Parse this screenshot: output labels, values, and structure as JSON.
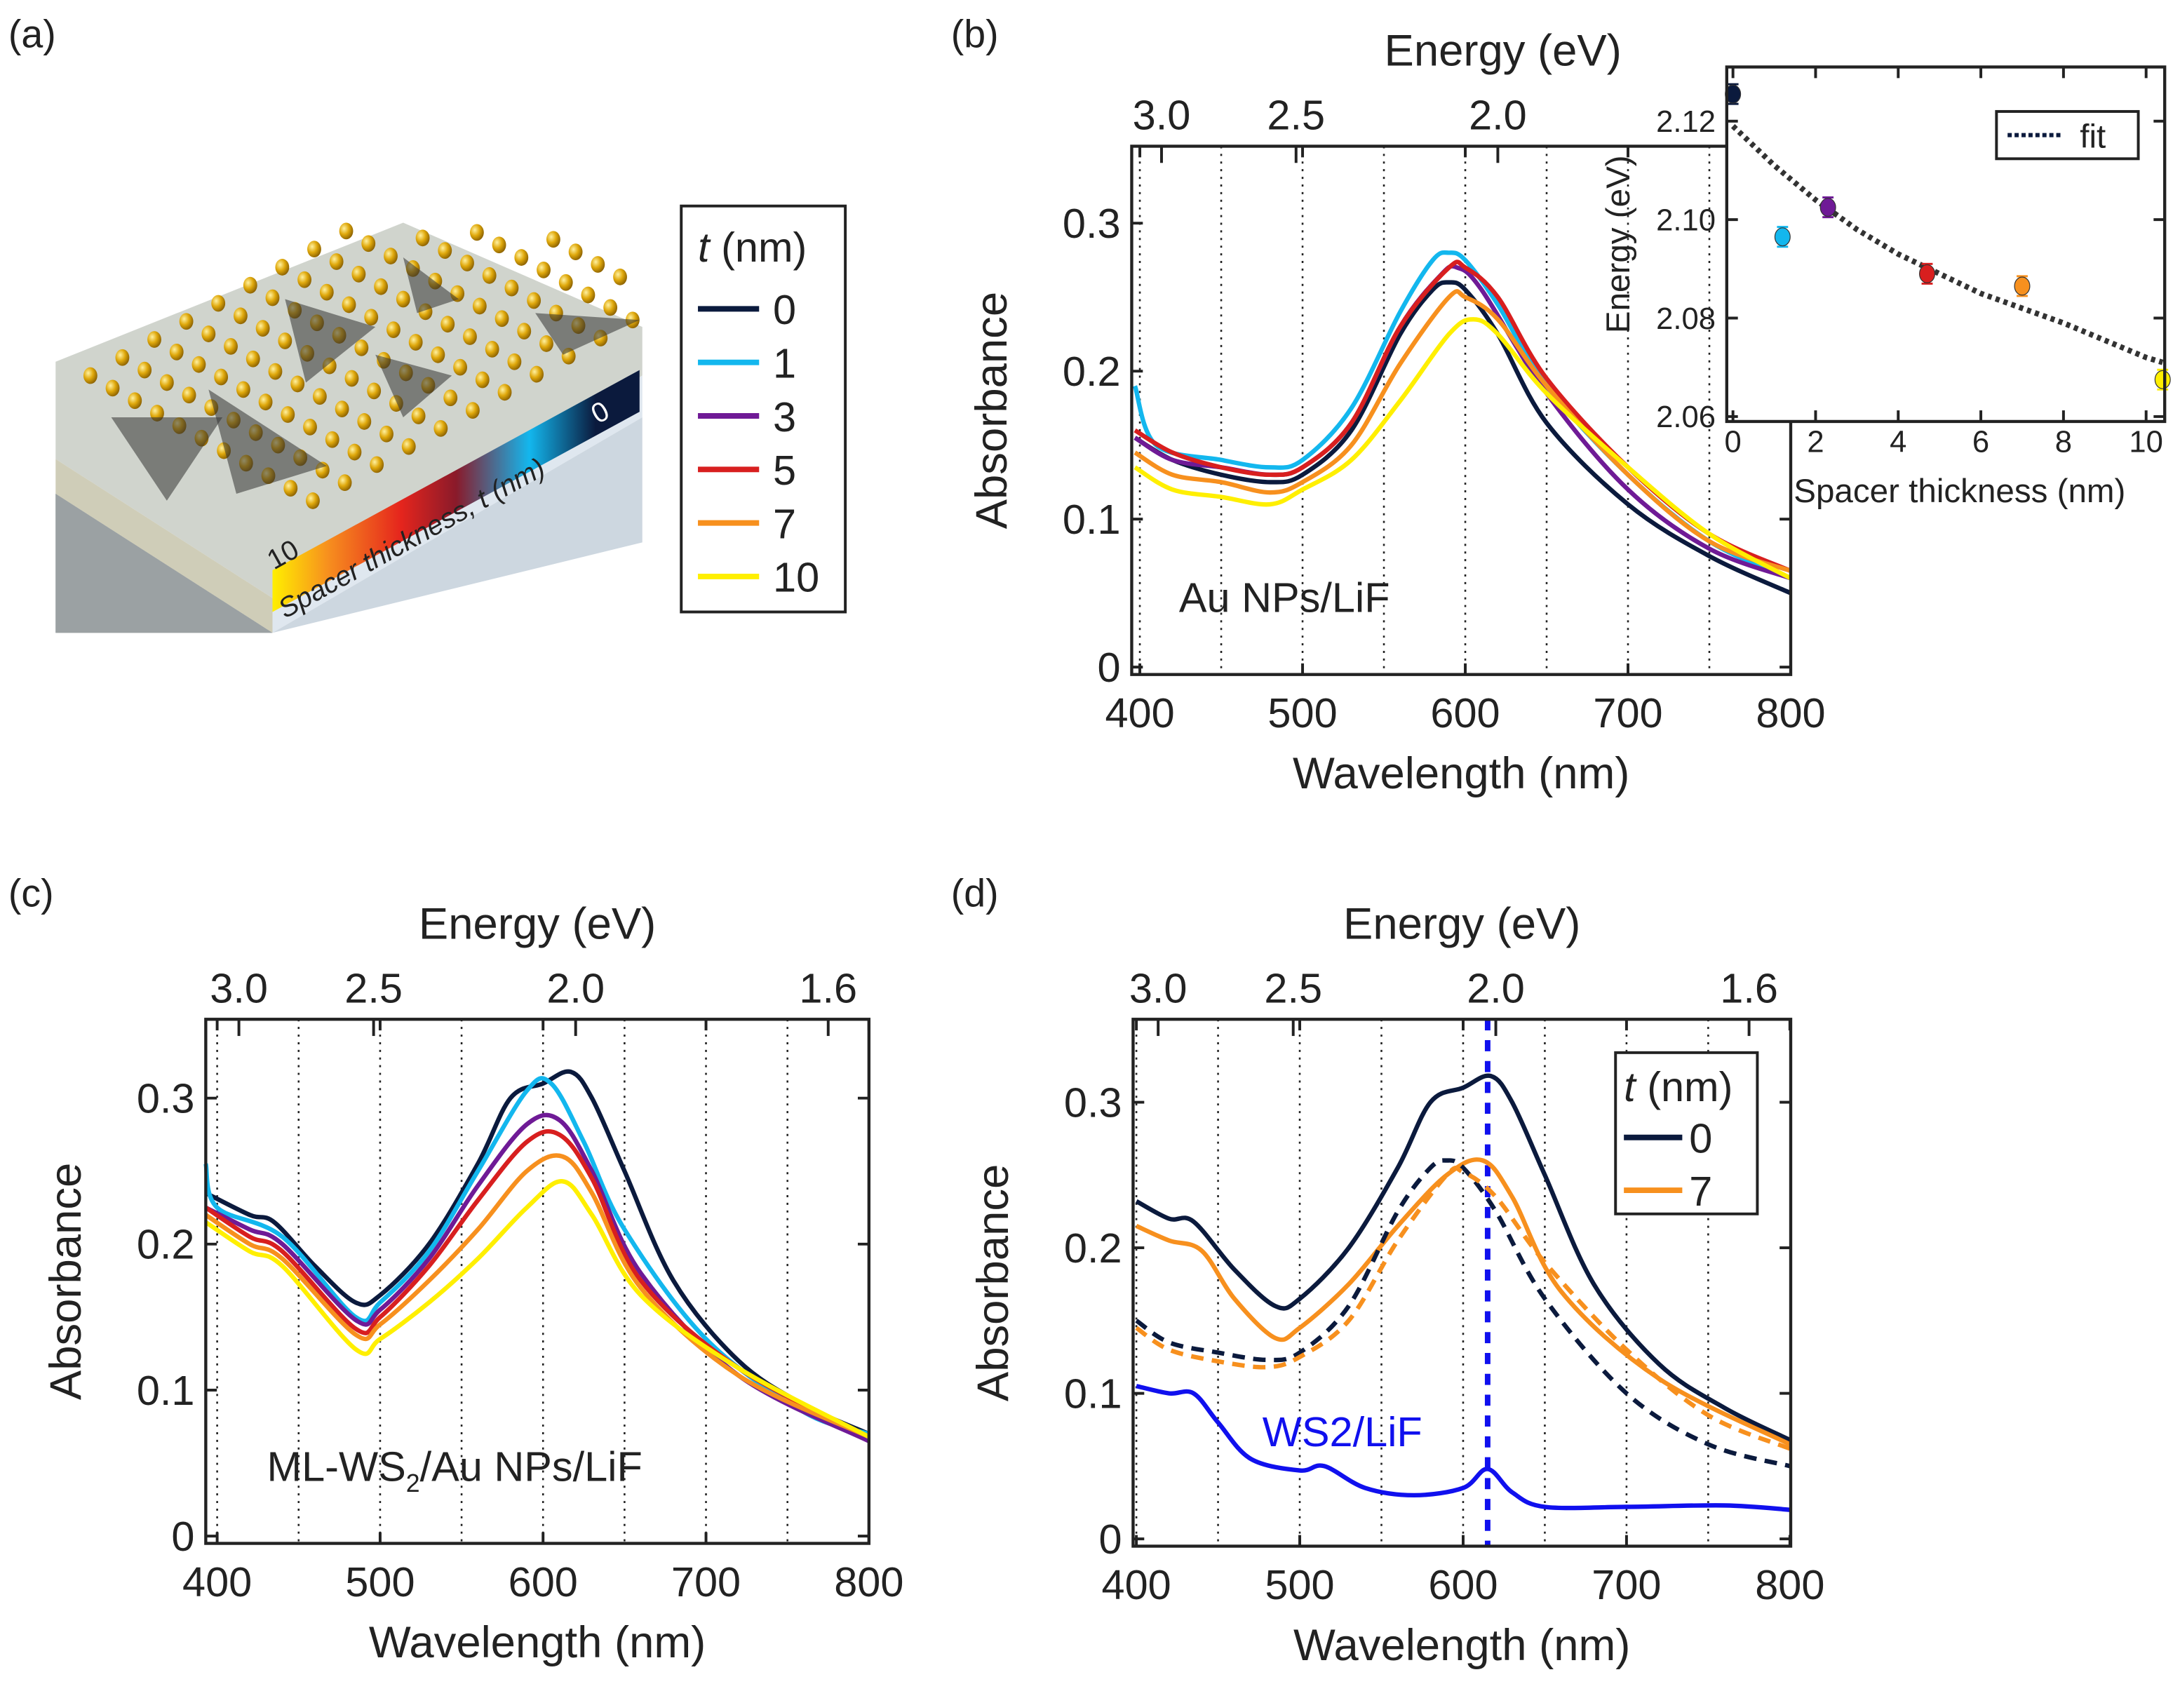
{
  "panel_labels": [
    "(a)",
    "(b)",
    "(c)",
    "(d)"
  ],
  "panel_a": {
    "colorbar_min_label": "10",
    "colorbar_max_label": "0",
    "axis_label": "Spacer thickness, t (nm)",
    "legend_title_italic": "t",
    "legend_title_rest": " (nm)",
    "legend": [
      {
        "label": "0",
        "color": "#0b1a3d"
      },
      {
        "label": "1",
        "color": "#13b7ee"
      },
      {
        "label": "3",
        "color": "#6f1a96"
      },
      {
        "label": "5",
        "color": "#d81f1f"
      },
      {
        "label": "7",
        "color": "#f7901e"
      },
      {
        "label": "10",
        "color": "#ffef00"
      }
    ]
  },
  "chart_data": [
    {
      "id": "b",
      "type": "line",
      "xlabel": "Wavelength (nm)",
      "ylabel": "Absorbance",
      "top_xlabel": "Energy (eV)",
      "annotation": "Au NPs/LiF",
      "xlim": [
        395,
        800
      ],
      "ylim": [
        -0.005,
        0.352
      ],
      "xticks": [
        "400",
        "500",
        "600",
        "700",
        "800"
      ],
      "yticks": [
        "0",
        "0.1",
        "0.2",
        "0.3"
      ],
      "top_ticks": [
        "3.0",
        "2.5",
        "2.0"
      ],
      "grid": "dotted vertical lines every 50 nm",
      "series": [
        {
          "name": "0",
          "color": "#0b1a3d",
          "x": [
            397,
            420,
            450,
            480,
            500,
            530,
            560,
            580,
            590,
            600,
            620,
            650,
            700,
            750,
            800
          ],
          "y": [
            0.155,
            0.14,
            0.13,
            0.125,
            0.13,
            0.16,
            0.225,
            0.255,
            0.26,
            0.255,
            0.225,
            0.165,
            0.11,
            0.075,
            0.05
          ]
        },
        {
          "name": "1",
          "color": "#13b7ee",
          "x": [
            397,
            410,
            450,
            480,
            500,
            530,
            560,
            580,
            590,
            600,
            620,
            650,
            700,
            750,
            800
          ],
          "y": [
            0.19,
            0.15,
            0.14,
            0.135,
            0.14,
            0.175,
            0.24,
            0.275,
            0.28,
            0.275,
            0.245,
            0.19,
            0.13,
            0.085,
            0.06
          ]
        },
        {
          "name": "3",
          "color": "#6f1a96",
          "x": [
            397,
            420,
            450,
            480,
            500,
            530,
            560,
            585,
            595,
            610,
            650,
            700,
            750,
            800
          ],
          "y": [
            0.155,
            0.14,
            0.135,
            0.13,
            0.135,
            0.165,
            0.23,
            0.265,
            0.27,
            0.255,
            0.185,
            0.12,
            0.08,
            0.06
          ]
        },
        {
          "name": "5",
          "color": "#d81f1f",
          "x": [
            397,
            420,
            450,
            480,
            500,
            530,
            560,
            590,
            600,
            620,
            650,
            700,
            750,
            800
          ],
          "y": [
            0.16,
            0.145,
            0.135,
            0.13,
            0.135,
            0.165,
            0.23,
            0.27,
            0.27,
            0.25,
            0.195,
            0.135,
            0.09,
            0.065
          ]
        },
        {
          "name": "7",
          "color": "#f7901e",
          "x": [
            397,
            420,
            450,
            480,
            500,
            530,
            560,
            590,
            600,
            620,
            650,
            700,
            750,
            800
          ],
          "y": [
            0.145,
            0.13,
            0.125,
            0.118,
            0.125,
            0.15,
            0.205,
            0.25,
            0.25,
            0.235,
            0.19,
            0.13,
            0.085,
            0.065
          ]
        },
        {
          "name": "10",
          "color": "#ffef00",
          "x": [
            397,
            420,
            450,
            480,
            500,
            530,
            560,
            590,
            605,
            620,
            650,
            700,
            750,
            800
          ],
          "y": [
            0.135,
            0.12,
            0.115,
            0.11,
            0.12,
            0.14,
            0.18,
            0.225,
            0.235,
            0.225,
            0.185,
            0.135,
            0.09,
            0.06
          ]
        }
      ]
    },
    {
      "id": "b-inset",
      "type": "scatter",
      "xlabel": "Spacer thickness (nm)",
      "ylabel": "Energy (eV)",
      "xlim": [
        -0.15,
        10.45
      ],
      "ylim": [
        2.059,
        2.131
      ],
      "xticks": [
        "0",
        "2",
        "4",
        "6",
        "8",
        "10"
      ],
      "yticks": [
        "2.06",
        "2.08",
        "2.10",
        "2.12"
      ],
      "legend": "fit",
      "points": [
        {
          "x": 0,
          "y": 2.1255,
          "err": 0.002,
          "color": "#0b1a3d"
        },
        {
          "x": 1.2,
          "y": 2.0965,
          "err": 0.002,
          "color": "#13b7ee"
        },
        {
          "x": 2.3,
          "y": 2.1025,
          "err": 0.002,
          "color": "#6f1a96"
        },
        {
          "x": 4.7,
          "y": 2.089,
          "err": 0.002,
          "color": "#d81f1f"
        },
        {
          "x": 7.0,
          "y": 2.0865,
          "err": 0.002,
          "color": "#f7901e"
        },
        {
          "x": 10.4,
          "y": 2.0675,
          "err": 0.002,
          "color": "#ffef00"
        }
      ],
      "fit": {
        "x": [
          0,
          1,
          2,
          3,
          4,
          5,
          6,
          7,
          8,
          9,
          10,
          10.4
        ],
        "y": [
          2.119,
          2.111,
          2.104,
          2.098,
          2.093,
          2.089,
          2.085,
          2.082,
          2.079,
          2.0755,
          2.072,
          2.071
        ]
      }
    },
    {
      "id": "c",
      "type": "line",
      "xlabel": "Wavelength (nm)",
      "ylabel": "Absorbance",
      "top_xlabel": "Energy (eV)",
      "annotation": "ML-WS2/Au NPs/LiF",
      "xlim": [
        393,
        800
      ],
      "ylim": [
        -0.005,
        0.354
      ],
      "xticks": [
        "400",
        "500",
        "600",
        "700",
        "800"
      ],
      "yticks": [
        "0",
        "0.1",
        "0.2",
        "0.3"
      ],
      "top_ticks": [
        "3.0",
        "2.5",
        "2.0",
        "1.6"
      ],
      "grid": "dotted vertical lines every 50 nm",
      "series": [
        {
          "name": "0",
          "color": "#0b1a3d",
          "x": [
            393,
            420,
            435,
            460,
            485,
            500,
            530,
            560,
            580,
            600,
            617,
            630,
            650,
            680,
            720,
            760,
            800
          ],
          "y": [
            0.235,
            0.22,
            0.215,
            0.185,
            0.16,
            0.165,
            0.2,
            0.255,
            0.3,
            0.31,
            0.318,
            0.3,
            0.25,
            0.175,
            0.12,
            0.09,
            0.07
          ]
        },
        {
          "name": "1",
          "color": "#13b7ee",
          "x": [
            393,
            400,
            440,
            485,
            500,
            530,
            560,
            590,
            605,
            625,
            650,
            700,
            760,
            800
          ],
          "y": [
            0.255,
            0.225,
            0.205,
            0.15,
            0.16,
            0.195,
            0.25,
            0.305,
            0.31,
            0.27,
            0.21,
            0.135,
            0.085,
            0.07
          ]
        },
        {
          "name": "3",
          "color": "#6f1a96",
          "x": [
            393,
            420,
            440,
            485,
            500,
            530,
            560,
            590,
            610,
            630,
            660,
            720,
            800
          ],
          "y": [
            0.225,
            0.21,
            0.2,
            0.148,
            0.155,
            0.19,
            0.24,
            0.282,
            0.285,
            0.25,
            0.18,
            0.11,
            0.065
          ]
        },
        {
          "name": "5",
          "color": "#d81f1f",
          "x": [
            393,
            420,
            440,
            485,
            500,
            530,
            560,
            590,
            610,
            630,
            660,
            720,
            800
          ],
          "y": [
            0.225,
            0.205,
            0.195,
            0.142,
            0.15,
            0.185,
            0.23,
            0.27,
            0.275,
            0.245,
            0.175,
            0.115,
            0.068
          ]
        },
        {
          "name": "7",
          "color": "#f7901e",
          "x": [
            393,
            420,
            440,
            485,
            500,
            530,
            560,
            590,
            612,
            630,
            660,
            720,
            800
          ],
          "y": [
            0.22,
            0.2,
            0.19,
            0.138,
            0.145,
            0.175,
            0.21,
            0.25,
            0.26,
            0.235,
            0.17,
            0.11,
            0.068
          ]
        },
        {
          "name": "10",
          "color": "#ffef00",
          "x": [
            393,
            420,
            440,
            485,
            500,
            530,
            560,
            590,
            612,
            630,
            660,
            720,
            800
          ],
          "y": [
            0.215,
            0.195,
            0.185,
            0.128,
            0.135,
            0.16,
            0.19,
            0.225,
            0.243,
            0.22,
            0.165,
            0.115,
            0.068
          ]
        }
      ]
    },
    {
      "id": "d",
      "type": "line",
      "xlabel": "Wavelength (nm)",
      "ylabel": "Absorbance",
      "top_xlabel": "Energy (eV)",
      "annotation": "WS2/LiF",
      "annotation_color": "#1010ee",
      "marker_line_nm": 615,
      "xlim": [
        398,
        800.5
      ],
      "ylim": [
        -0.005,
        0.357
      ],
      "xticks": [
        "400",
        "500",
        "600",
        "700",
        "800"
      ],
      "yticks": [
        "0",
        "0.1",
        "0.2",
        "0.3"
      ],
      "top_ticks": [
        "3.0",
        "2.5",
        "2.0",
        "1.6"
      ],
      "legend_title_italic": "t",
      "legend_title_rest": " (nm)",
      "legend": [
        {
          "label": "0",
          "color": "#0b1a3d"
        },
        {
          "label": "7",
          "color": "#f7901e"
        }
      ],
      "series": [
        {
          "name": "0",
          "color": "#0b1a3d",
          "dashed": false,
          "x": [
            400,
            420,
            435,
            460,
            485,
            500,
            530,
            560,
            580,
            600,
            617,
            630,
            650,
            680,
            720,
            760,
            800
          ],
          "y": [
            0.232,
            0.22,
            0.218,
            0.185,
            0.16,
            0.165,
            0.2,
            0.255,
            0.3,
            0.31,
            0.318,
            0.3,
            0.25,
            0.175,
            0.12,
            0.09,
            0.068
          ]
        },
        {
          "name": "7",
          "color": "#f7901e",
          "dashed": false,
          "x": [
            400,
            420,
            440,
            460,
            485,
            500,
            530,
            560,
            590,
            612,
            630,
            660,
            720,
            800
          ],
          "y": [
            0.215,
            0.205,
            0.198,
            0.165,
            0.138,
            0.145,
            0.175,
            0.215,
            0.25,
            0.26,
            0.235,
            0.17,
            0.11,
            0.065
          ]
        },
        {
          "color": "#0b1a3d",
          "dashed": true,
          "x": [
            400,
            420,
            450,
            480,
            500,
            530,
            560,
            580,
            590,
            600,
            620,
            650,
            700,
            750,
            800
          ],
          "y": [
            0.15,
            0.135,
            0.128,
            0.123,
            0.128,
            0.16,
            0.225,
            0.255,
            0.26,
            0.255,
            0.225,
            0.165,
            0.1,
            0.065,
            0.05
          ]
        },
        {
          "color": "#f7901e",
          "dashed": true,
          "x": [
            400,
            420,
            450,
            480,
            500,
            530,
            560,
            590,
            600,
            620,
            650,
            700,
            750,
            800
          ],
          "y": [
            0.145,
            0.13,
            0.122,
            0.118,
            0.125,
            0.15,
            0.205,
            0.25,
            0.252,
            0.235,
            0.19,
            0.13,
            0.085,
            0.062
          ]
        },
        {
          "color": "#1010ee",
          "dashed": false,
          "x": [
            400,
            420,
            435,
            450,
            470,
            500,
            515,
            540,
            570,
            600,
            615,
            630,
            650,
            700,
            760,
            800
          ],
          "y": [
            0.105,
            0.1,
            0.1,
            0.08,
            0.055,
            0.047,
            0.05,
            0.035,
            0.03,
            0.035,
            0.048,
            0.032,
            0.022,
            0.022,
            0.023,
            0.02
          ]
        }
      ]
    }
  ]
}
